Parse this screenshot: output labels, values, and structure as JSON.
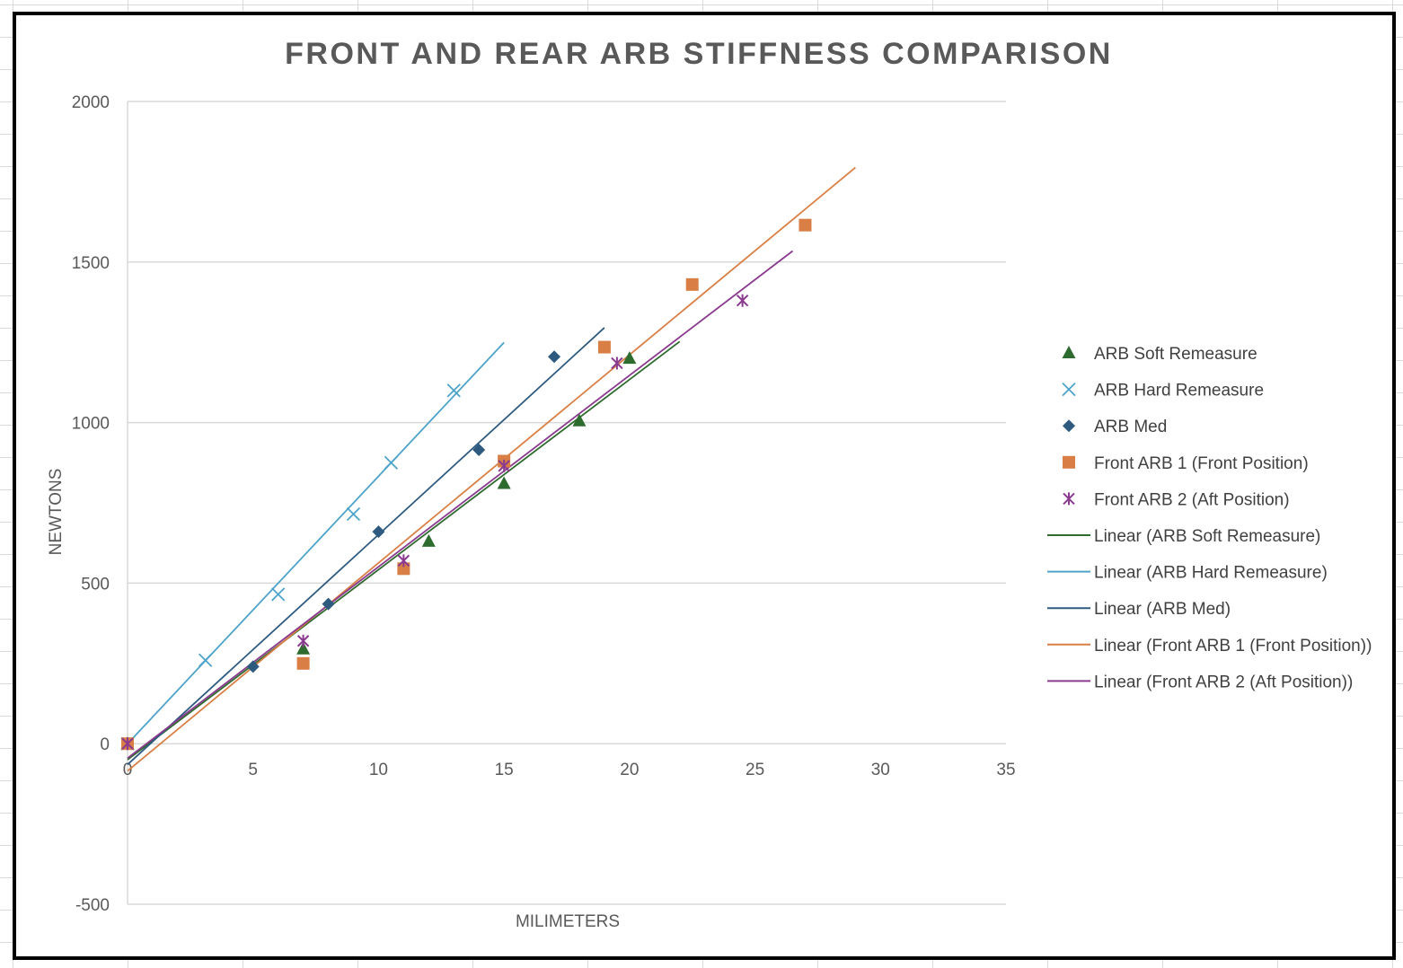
{
  "chart_data": {
    "type": "scatter",
    "title": "FRONT AND REAR ARB STIFFNESS COMPARISON",
    "xlabel": "MILIMETERS",
    "ylabel": "NEWTONS",
    "xlim": [
      0,
      35
    ],
    "ylim": [
      -500,
      2000
    ],
    "x_ticks": [
      0,
      5,
      10,
      15,
      20,
      25,
      30,
      35
    ],
    "y_ticks": [
      -500,
      0,
      500,
      1000,
      1500,
      2000
    ],
    "grid": "horizontal",
    "legend_position": "right",
    "series": [
      {
        "name": "ARB Soft Remeasure",
        "marker": "triangle",
        "color": "#2e6b2e",
        "points": [
          [
            0,
            0
          ],
          [
            7,
            295
          ],
          [
            12,
            630
          ],
          [
            15,
            810
          ],
          [
            18,
            1005
          ],
          [
            20,
            1200
          ]
        ]
      },
      {
        "name": "ARB Hard Remeasure",
        "marker": "x",
        "color": "#4ea3c9",
        "points": [
          [
            0,
            0
          ],
          [
            3.1,
            260
          ],
          [
            6,
            465
          ],
          [
            9,
            715
          ],
          [
            10.5,
            875
          ],
          [
            13,
            1100
          ]
        ]
      },
      {
        "name": "ARB Med",
        "marker": "diamond",
        "color": "#2e5a80",
        "points": [
          [
            0,
            0
          ],
          [
            5,
            240
          ],
          [
            8,
            435
          ],
          [
            10,
            660
          ],
          [
            14,
            915
          ],
          [
            17,
            1205
          ]
        ]
      },
      {
        "name": "Front ARB 1 (Front Position)",
        "marker": "square",
        "color": "#d97f45",
        "points": [
          [
            0,
            0
          ],
          [
            7,
            250
          ],
          [
            11,
            545
          ],
          [
            15,
            880
          ],
          [
            19,
            1235
          ],
          [
            22.5,
            1430
          ],
          [
            27,
            1615
          ]
        ]
      },
      {
        "name": "Front ARB 2 (Aft Position)",
        "marker": "asterisk",
        "color": "#8a3a8f",
        "points": [
          [
            0,
            0
          ],
          [
            7,
            320
          ],
          [
            11,
            570
          ],
          [
            15,
            865
          ],
          [
            19.5,
            1185
          ],
          [
            24.5,
            1380
          ]
        ]
      }
    ],
    "trendlines": [
      {
        "name": "Linear (ARB Soft Remeasure)",
        "color": "#2e6b2e",
        "x_range": [
          0,
          22
        ],
        "slope": 59.2,
        "intercept": -50
      },
      {
        "name": "Linear (ARB Hard Remeasure)",
        "color": "#4ea3c9",
        "x_range": [
          0,
          15
        ],
        "slope": 83.3,
        "intercept": 0
      },
      {
        "name": "Linear (ARB Med)",
        "color": "#2e5a80",
        "x_range": [
          0,
          19
        ],
        "slope": 71.6,
        "intercept": -65
      },
      {
        "name": "Linear (Front ARB 1 (Front Position))",
        "color": "#d97f45",
        "x_range": [
          0,
          29
        ],
        "slope": 64.8,
        "intercept": -85
      },
      {
        "name": "Linear (Front ARB 2 (Aft Position))",
        "color": "#8a3a8f",
        "x_range": [
          0,
          26.5
        ],
        "slope": 59.6,
        "intercept": -45
      }
    ]
  }
}
